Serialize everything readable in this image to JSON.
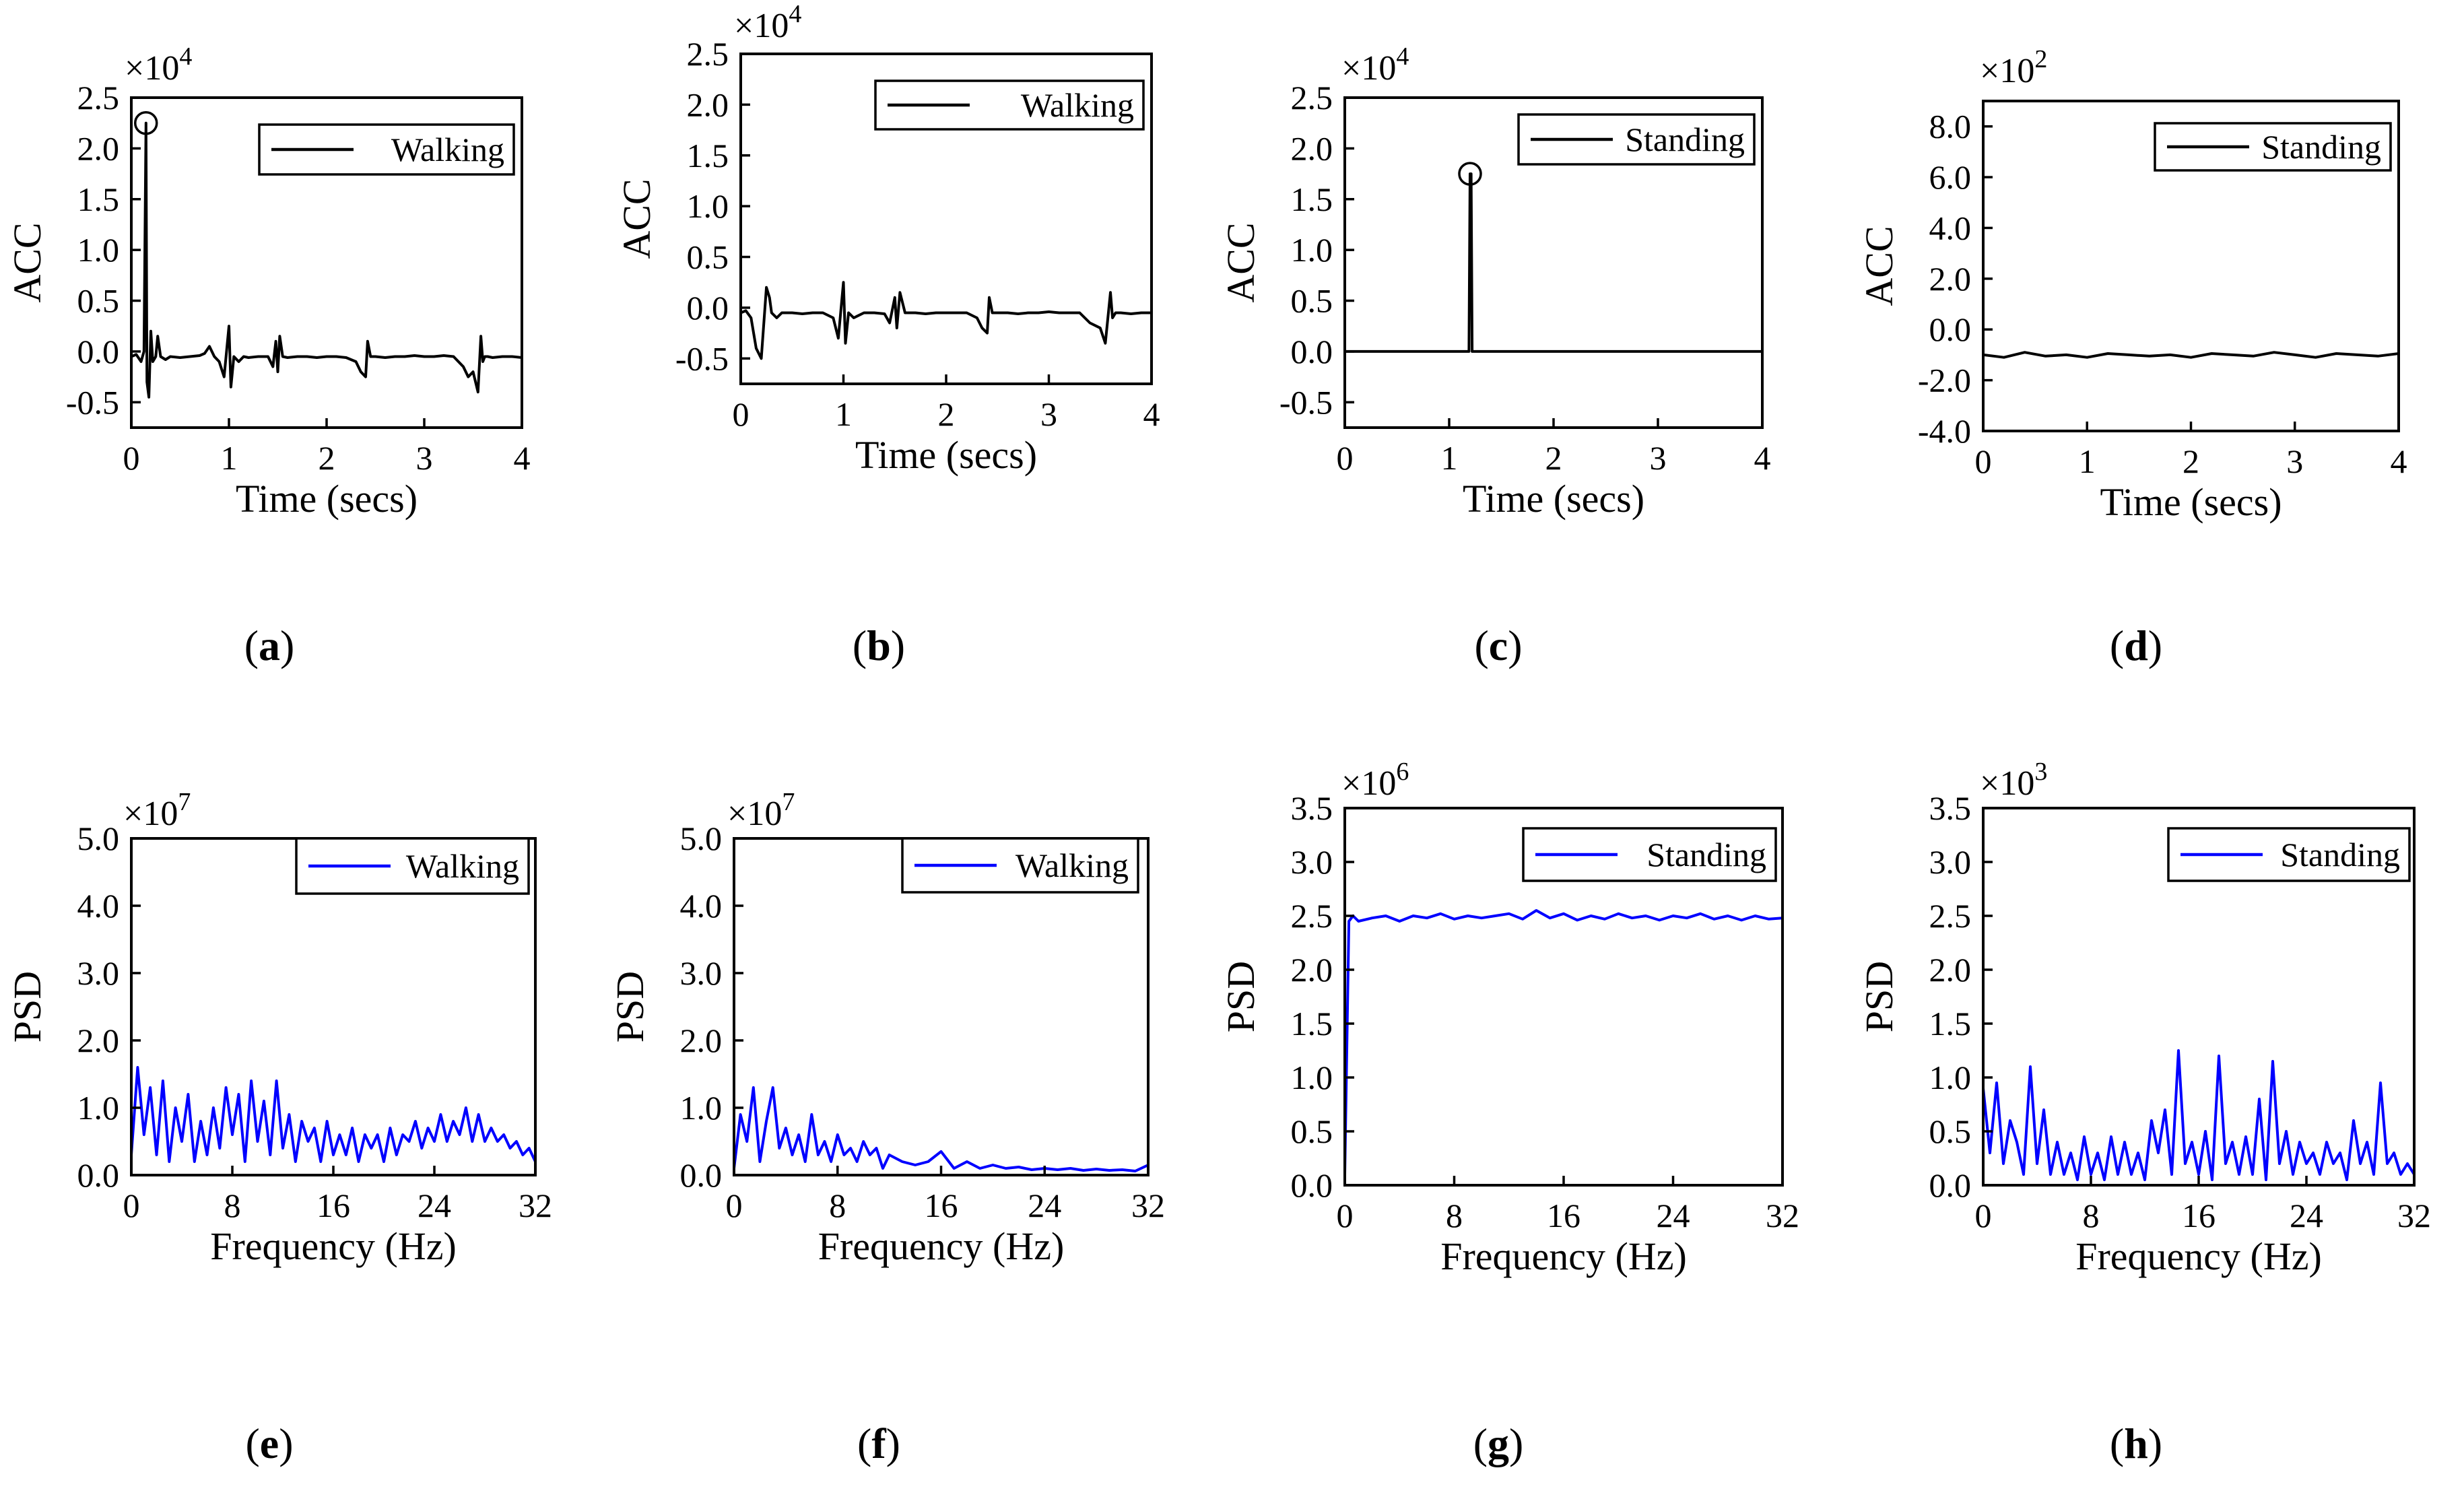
{
  "figure_title": "",
  "chart_data": [
    {
      "id": "a",
      "caption": "a",
      "type": "line",
      "title": "",
      "xlabel": "Time (secs)",
      "ylabel": "ACC",
      "multiplier": "×10",
      "exponent": "4",
      "legend": "Walking",
      "color": "#000000",
      "xlim": [
        0,
        4
      ],
      "ylim": [
        -0.75,
        2.5
      ],
      "xticks": [
        0,
        1,
        2,
        3,
        4
      ],
      "yticks": [
        -0.5,
        0.0,
        0.5,
        1.0,
        1.5,
        2.0,
        2.5
      ],
      "ytick_labels": [
        "-0.5",
        "0.0",
        "0.5",
        "1.0",
        "1.5",
        "2.0",
        "2.5"
      ],
      "marker": [
        0.15,
        2.25
      ],
      "series": [
        {
          "name": "Walking",
          "x": [
            0,
            0.05,
            0.1,
            0.13,
            0.15,
            0.16,
            0.18,
            0.2,
            0.22,
            0.25,
            0.27,
            0.3,
            0.35,
            0.4,
            0.5,
            0.6,
            0.7,
            0.75,
            0.8,
            0.85,
            0.9,
            0.95,
            1.0,
            1.02,
            1.05,
            1.1,
            1.15,
            1.2,
            1.3,
            1.4,
            1.45,
            1.48,
            1.5,
            1.52,
            1.55,
            1.6,
            1.7,
            1.8,
            1.9,
            2.0,
            2.1,
            2.2,
            2.3,
            2.35,
            2.4,
            2.42,
            2.45,
            2.5,
            2.6,
            2.7,
            2.8,
            2.9,
            3.0,
            3.1,
            3.2,
            3.3,
            3.4,
            3.45,
            3.5,
            3.55,
            3.58,
            3.6,
            3.62,
            3.65,
            3.7,
            3.8,
            3.9,
            4.0
          ],
          "y": [
            -0.05,
            -0.03,
            -0.1,
            0.0,
            2.25,
            -0.3,
            -0.45,
            0.2,
            -0.1,
            -0.05,
            0.15,
            -0.05,
            -0.08,
            -0.05,
            -0.06,
            -0.05,
            -0.04,
            -0.02,
            0.05,
            -0.05,
            -0.1,
            -0.25,
            0.25,
            -0.35,
            -0.05,
            -0.1,
            -0.05,
            -0.06,
            -0.05,
            -0.05,
            -0.15,
            0.1,
            -0.2,
            0.15,
            -0.05,
            -0.06,
            -0.05,
            -0.05,
            -0.06,
            -0.05,
            -0.05,
            -0.06,
            -0.1,
            -0.2,
            -0.25,
            0.1,
            -0.05,
            -0.05,
            -0.06,
            -0.05,
            -0.05,
            -0.04,
            -0.05,
            -0.05,
            -0.04,
            -0.05,
            -0.15,
            -0.25,
            -0.2,
            -0.4,
            0.15,
            -0.1,
            -0.05,
            -0.05,
            -0.06,
            -0.05,
            -0.05,
            -0.06
          ]
        }
      ]
    },
    {
      "id": "b",
      "caption": "b",
      "type": "line",
      "title": "",
      "xlabel": "Time (secs)",
      "ylabel": "ACC",
      "multiplier": "×10",
      "exponent": "4",
      "legend": "Walking",
      "color": "#000000",
      "xlim": [
        0,
        4
      ],
      "ylim": [
        -0.75,
        2.5
      ],
      "xticks": [
        0,
        1,
        2,
        3,
        4
      ],
      "yticks": [
        -0.5,
        0.0,
        0.5,
        1.0,
        1.5,
        2.0,
        2.5
      ],
      "ytick_labels": [
        "-0.5",
        "0.0",
        "0.5",
        "1.0",
        "1.5",
        "2.0",
        "2.5"
      ],
      "marker": null,
      "series": [
        {
          "name": "Walking",
          "x": [
            0,
            0.05,
            0.1,
            0.15,
            0.2,
            0.25,
            0.28,
            0.3,
            0.35,
            0.4,
            0.5,
            0.6,
            0.7,
            0.8,
            0.9,
            0.95,
            1.0,
            1.02,
            1.05,
            1.1,
            1.2,
            1.3,
            1.4,
            1.45,
            1.5,
            1.52,
            1.55,
            1.6,
            1.7,
            1.8,
            1.9,
            2.0,
            2.1,
            2.2,
            2.3,
            2.35,
            2.4,
            2.42,
            2.45,
            2.5,
            2.6,
            2.7,
            2.8,
            2.9,
            3.0,
            3.1,
            3.2,
            3.3,
            3.4,
            3.5,
            3.55,
            3.6,
            3.62,
            3.65,
            3.7,
            3.8,
            3.9,
            4.0
          ],
          "y": [
            -0.05,
            -0.03,
            -0.1,
            -0.4,
            -0.5,
            0.2,
            0.1,
            -0.05,
            -0.1,
            -0.05,
            -0.05,
            -0.06,
            -0.05,
            -0.05,
            -0.1,
            -0.3,
            0.25,
            -0.35,
            -0.05,
            -0.1,
            -0.05,
            -0.05,
            -0.06,
            -0.15,
            0.1,
            -0.2,
            0.15,
            -0.05,
            -0.05,
            -0.06,
            -0.05,
            -0.05,
            -0.05,
            -0.05,
            -0.1,
            -0.2,
            -0.25,
            0.1,
            -0.05,
            -0.05,
            -0.05,
            -0.06,
            -0.05,
            -0.05,
            -0.04,
            -0.05,
            -0.05,
            -0.05,
            -0.15,
            -0.2,
            -0.35,
            0.15,
            -0.1,
            -0.05,
            -0.05,
            -0.06,
            -0.05,
            -0.05
          ]
        }
      ]
    },
    {
      "id": "c",
      "caption": "c",
      "type": "line",
      "title": "",
      "xlabel": "Time (secs)",
      "ylabel": "ACC",
      "multiplier": "×10",
      "exponent": "4",
      "legend": "Standing",
      "color": "#000000",
      "xlim": [
        0,
        4
      ],
      "ylim": [
        -0.75,
        2.5
      ],
      "xticks": [
        0,
        1,
        2,
        3,
        4
      ],
      "yticks": [
        -0.5,
        0.0,
        0.5,
        1.0,
        1.5,
        2.0,
        2.5
      ],
      "ytick_labels": [
        "-0.5",
        "0.0",
        "0.5",
        "1.0",
        "1.5",
        "2.0",
        "2.5"
      ],
      "marker": [
        1.2,
        1.75
      ],
      "series": [
        {
          "name": "Standing",
          "x": [
            0,
            0.5,
            1.0,
            1.18,
            1.19,
            1.2,
            1.21,
            1.22,
            1.23,
            1.5,
            2.0,
            2.5,
            3.0,
            3.5,
            4.0
          ],
          "y": [
            0,
            0,
            0,
            0,
            0,
            1.75,
            1.75,
            0,
            0,
            0,
            0,
            0,
            0,
            0,
            0
          ]
        }
      ]
    },
    {
      "id": "d",
      "caption": "d",
      "type": "line",
      "title": "",
      "xlabel": "Time (secs)",
      "ylabel": "ACC",
      "multiplier": "×10",
      "exponent": "2",
      "legend": "Standing",
      "color": "#000000",
      "xlim": [
        0,
        4
      ],
      "ylim": [
        -4,
        9
      ],
      "xticks": [
        0,
        1,
        2,
        3,
        4
      ],
      "yticks": [
        -4,
        -2,
        0,
        2,
        4,
        6,
        8
      ],
      "ytick_labels": [
        "-4.0",
        "-2.0",
        "0.0",
        "2.0",
        "4.0",
        "6.0",
        "8.0"
      ],
      "marker": null,
      "series": [
        {
          "name": "Standing",
          "x": [
            0,
            0.2,
            0.4,
            0.6,
            0.8,
            1.0,
            1.2,
            1.4,
            1.6,
            1.8,
            2.0,
            2.2,
            2.4,
            2.6,
            2.8,
            3.0,
            3.2,
            3.4,
            3.6,
            3.8,
            4.0
          ],
          "y": [
            -1.0,
            -1.1,
            -0.9,
            -1.05,
            -1.0,
            -1.1,
            -0.95,
            -1.0,
            -1.05,
            -1.0,
            -1.1,
            -0.95,
            -1.0,
            -1.05,
            -0.9,
            -1.0,
            -1.1,
            -0.95,
            -1.0,
            -1.05,
            -0.95
          ]
        }
      ]
    },
    {
      "id": "e",
      "caption": "e",
      "type": "line",
      "title": "",
      "xlabel": "Frequency (Hz)",
      "ylabel": "PSD",
      "multiplier": "×10",
      "exponent": "7",
      "legend": "Walking",
      "color": "#0000ff",
      "xlim": [
        0,
        32
      ],
      "ylim": [
        0,
        5
      ],
      "xticks": [
        0,
        8,
        16,
        24,
        32
      ],
      "yticks": [
        0,
        1,
        2,
        3,
        4,
        5
      ],
      "ytick_labels": [
        "0.0",
        "1.0",
        "2.0",
        "3.0",
        "4.0",
        "5.0"
      ],
      "marker": null,
      "series": [
        {
          "name": "Walking",
          "x": [
            0,
            0.5,
            1,
            1.5,
            2,
            2.5,
            3,
            3.5,
            4,
            4.5,
            5,
            5.5,
            6,
            6.5,
            7,
            7.5,
            8,
            8.5,
            9,
            9.5,
            10,
            10.5,
            11,
            11.5,
            12,
            12.5,
            13,
            13.5,
            14,
            14.5,
            15,
            15.5,
            16,
            16.5,
            17,
            17.5,
            18,
            18.5,
            19,
            19.5,
            20,
            20.5,
            21,
            21.5,
            22,
            22.5,
            23,
            23.5,
            24,
            24.5,
            25,
            25.5,
            26,
            26.5,
            27,
            27.5,
            28,
            28.5,
            29,
            29.5,
            30,
            30.5,
            31,
            31.5,
            32
          ],
          "y": [
            0.3,
            1.6,
            0.6,
            1.3,
            0.3,
            1.4,
            0.2,
            1.0,
            0.5,
            1.2,
            0.2,
            0.8,
            0.3,
            1.0,
            0.4,
            1.3,
            0.6,
            1.2,
            0.2,
            1.4,
            0.5,
            1.1,
            0.3,
            1.4,
            0.4,
            0.9,
            0.2,
            0.8,
            0.5,
            0.7,
            0.2,
            0.8,
            0.3,
            0.6,
            0.3,
            0.7,
            0.2,
            0.6,
            0.4,
            0.6,
            0.2,
            0.7,
            0.3,
            0.6,
            0.5,
            0.8,
            0.4,
            0.7,
            0.5,
            0.9,
            0.5,
            0.8,
            0.6,
            1.0,
            0.5,
            0.9,
            0.5,
            0.7,
            0.5,
            0.6,
            0.4,
            0.5,
            0.3,
            0.4,
            0.2
          ]
        }
      ]
    },
    {
      "id": "f",
      "caption": "f",
      "type": "line",
      "title": "",
      "xlabel": "Frequency (Hz)",
      "ylabel": "PSD",
      "multiplier": "×10",
      "exponent": "7",
      "legend": "Walking",
      "color": "#0000ff",
      "xlim": [
        0,
        32
      ],
      "ylim": [
        0,
        5
      ],
      "xticks": [
        0,
        8,
        16,
        24,
        32
      ],
      "yticks": [
        0,
        1,
        2,
        3,
        4,
        5
      ],
      "ytick_labels": [
        "0.0",
        "1.0",
        "2.0",
        "3.0",
        "4.0",
        "5.0"
      ],
      "marker": null,
      "series": [
        {
          "name": "Walking",
          "x": [
            0,
            0.5,
            1,
            1.5,
            2,
            2.5,
            3,
            3.5,
            4,
            4.5,
            5,
            5.5,
            6,
            6.5,
            7,
            7.5,
            8,
            8.5,
            9,
            9.5,
            10,
            10.5,
            11,
            11.5,
            12,
            13,
            14,
            15,
            16,
            17,
            18,
            19,
            20,
            21,
            22,
            23,
            24,
            25,
            26,
            27,
            28,
            29,
            30,
            31,
            32
          ],
          "y": [
            0.1,
            0.9,
            0.5,
            1.3,
            0.2,
            0.8,
            1.3,
            0.4,
            0.7,
            0.3,
            0.6,
            0.2,
            0.9,
            0.3,
            0.5,
            0.2,
            0.6,
            0.3,
            0.4,
            0.2,
            0.5,
            0.3,
            0.4,
            0.1,
            0.3,
            0.2,
            0.15,
            0.2,
            0.35,
            0.1,
            0.2,
            0.1,
            0.15,
            0.1,
            0.12,
            0.08,
            0.1,
            0.08,
            0.1,
            0.07,
            0.09,
            0.07,
            0.08,
            0.06,
            0.15
          ]
        }
      ]
    },
    {
      "id": "g",
      "caption": "g",
      "type": "line",
      "title": "",
      "xlabel": "Frequency (Hz)",
      "ylabel": "PSD",
      "multiplier": "×10",
      "exponent": "6",
      "legend": "Standing",
      "color": "#0000ff",
      "xlim": [
        0,
        32
      ],
      "ylim": [
        0,
        3.5
      ],
      "xticks": [
        0,
        8,
        16,
        24,
        32
      ],
      "yticks": [
        0,
        0.5,
        1.0,
        1.5,
        2.0,
        2.5,
        3.0,
        3.5
      ],
      "ytick_labels": [
        "0.0",
        "0.5",
        "1.0",
        "1.5",
        "2.0",
        "2.5",
        "3.0",
        "3.5"
      ],
      "marker": null,
      "series": [
        {
          "name": "Standing",
          "x": [
            0,
            0.3,
            0.6,
            1,
            2,
            3,
            4,
            5,
            6,
            7,
            8,
            9,
            10,
            11,
            12,
            13,
            14,
            15,
            16,
            17,
            18,
            19,
            20,
            21,
            22,
            23,
            24,
            25,
            26,
            27,
            28,
            29,
            30,
            31,
            32
          ],
          "y": [
            0.1,
            2.45,
            2.5,
            2.45,
            2.48,
            2.5,
            2.45,
            2.5,
            2.48,
            2.52,
            2.47,
            2.5,
            2.48,
            2.5,
            2.52,
            2.47,
            2.55,
            2.48,
            2.52,
            2.46,
            2.5,
            2.47,
            2.52,
            2.48,
            2.5,
            2.46,
            2.5,
            2.48,
            2.52,
            2.47,
            2.5,
            2.46,
            2.5,
            2.47,
            2.48
          ]
        }
      ]
    },
    {
      "id": "h",
      "caption": "h",
      "type": "line",
      "title": "",
      "xlabel": "Frequency (Hz)",
      "ylabel": "PSD",
      "multiplier": "×10",
      "exponent": "3",
      "legend": "Standing",
      "color": "#0000ff",
      "xlim": [
        0,
        32
      ],
      "ylim": [
        0,
        3.5
      ],
      "xticks": [
        0,
        8,
        16,
        24,
        32
      ],
      "yticks": [
        0,
        0.5,
        1.0,
        1.5,
        2.0,
        2.5,
        3.0,
        3.5
      ],
      "ytick_labels": [
        "0.0",
        "0.5",
        "1.0",
        "1.5",
        "2.0",
        "2.5",
        "3.0",
        "3.5"
      ],
      "marker": null,
      "series": [
        {
          "name": "Standing",
          "x": [
            0,
            0.5,
            1,
            1.5,
            2,
            2.5,
            3,
            3.5,
            4,
            4.5,
            5,
            5.5,
            6,
            6.5,
            7,
            7.5,
            8,
            8.5,
            9,
            9.5,
            10,
            10.5,
            11,
            11.5,
            12,
            12.5,
            13,
            13.5,
            14,
            14.5,
            15,
            15.5,
            16,
            16.5,
            17,
            17.5,
            18,
            18.5,
            19,
            19.5,
            20,
            20.5,
            21,
            21.5,
            22,
            22.5,
            23,
            23.5,
            24,
            24.5,
            25,
            25.5,
            26,
            26.5,
            27,
            27.5,
            28,
            28.5,
            29,
            29.5,
            30,
            30.5,
            31,
            31.5,
            32
          ],
          "y": [
            0.9,
            0.3,
            0.95,
            0.2,
            0.6,
            0.4,
            0.1,
            1.1,
            0.2,
            0.7,
            0.1,
            0.4,
            0.1,
            0.3,
            0.05,
            0.45,
            0.1,
            0.3,
            0.05,
            0.45,
            0.1,
            0.4,
            0.1,
            0.3,
            0.05,
            0.6,
            0.3,
            0.7,
            0.1,
            1.25,
            0.2,
            0.4,
            0.1,
            0.5,
            0.05,
            1.2,
            0.2,
            0.4,
            0.1,
            0.45,
            0.1,
            0.8,
            0.05,
            1.15,
            0.2,
            0.5,
            0.1,
            0.4,
            0.2,
            0.3,
            0.1,
            0.4,
            0.2,
            0.3,
            0.05,
            0.6,
            0.2,
            0.4,
            0.1,
            0.95,
            0.2,
            0.3,
            0.1,
            0.2,
            0.1
          ]
        }
      ]
    }
  ]
}
